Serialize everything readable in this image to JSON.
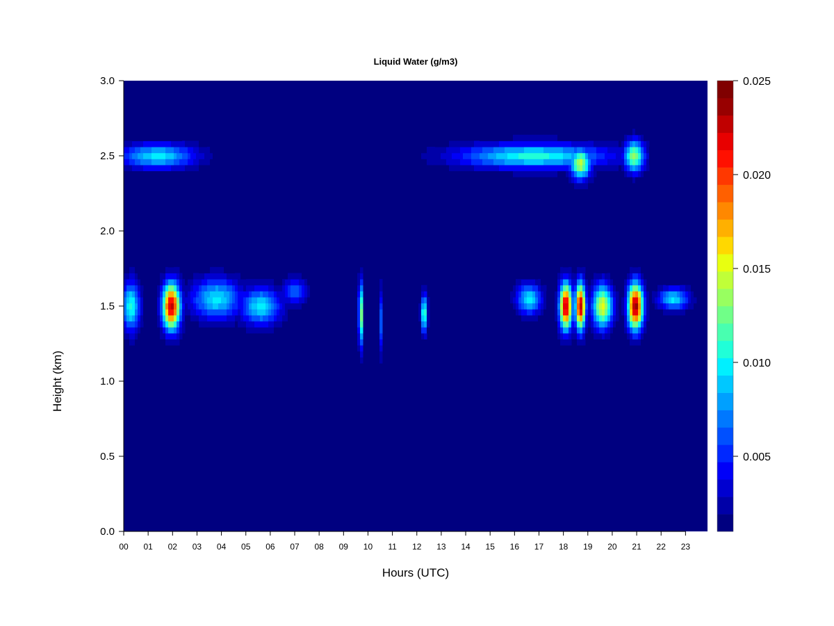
{
  "chart_data": {
    "type": "heatmap",
    "title": "Liquid Water (g/m3)",
    "xlabel": "Hours (UTC)",
    "ylabel": "Height (km)",
    "xlim": [
      0,
      23.9
    ],
    "ylim": [
      0,
      3.0
    ],
    "x_ticks": [
      "00",
      "01",
      "02",
      "03",
      "04",
      "05",
      "06",
      "07",
      "08",
      "09",
      "10",
      "11",
      "12",
      "13",
      "14",
      "15",
      "16",
      "17",
      "18",
      "19",
      "20",
      "21",
      "22",
      "23"
    ],
    "y_ticks": [
      "0.0",
      "0.5",
      "1.0",
      "1.5",
      "2.0",
      "2.5",
      "3.0"
    ],
    "colorbar": {
      "range": [
        0.001,
        0.025
      ],
      "ticks": [
        "0.005",
        "0.010",
        "0.015",
        "0.020",
        "0.025"
      ],
      "colors": [
        "#000080",
        "#0000a8",
        "#0000d0",
        "#0000f8",
        "#0028ff",
        "#0050ff",
        "#0078ff",
        "#00a0ff",
        "#00c8ff",
        "#00f0ff",
        "#20ffd8",
        "#48ffb0",
        "#70ff88",
        "#98ff60",
        "#c0ff38",
        "#e8ff10",
        "#ffd800",
        "#ffb000",
        "#ff8800",
        "#ff6000",
        "#ff3800",
        "#ff1000",
        "#e80000",
        "#c00000",
        "#980000",
        "#800000"
      ]
    },
    "features": [
      {
        "hour": 0.3,
        "height": 1.5,
        "intensity": 0.011,
        "sx": 0.35,
        "sy": 0.16
      },
      {
        "hour": 1.95,
        "height": 1.5,
        "intensity": 0.024,
        "sx": 0.35,
        "sy": 0.15
      },
      {
        "hour": 3.8,
        "height": 1.55,
        "intensity": 0.01,
        "sx": 1.0,
        "sy": 0.13
      },
      {
        "hour": 5.6,
        "height": 1.5,
        "intensity": 0.01,
        "sx": 0.8,
        "sy": 0.12
      },
      {
        "hour": 7.0,
        "height": 1.6,
        "intensity": 0.007,
        "sx": 0.5,
        "sy": 0.08
      },
      {
        "hour": 1.4,
        "height": 2.5,
        "intensity": 0.01,
        "sx": 1.5,
        "sy": 0.08
      },
      {
        "hour": 9.7,
        "height": 1.45,
        "intensity": 0.015,
        "sx": 0.08,
        "sy": 0.2
      },
      {
        "hour": 10.5,
        "height": 1.4,
        "intensity": 0.008,
        "sx": 0.06,
        "sy": 0.2
      },
      {
        "hour": 12.3,
        "height": 1.45,
        "intensity": 0.013,
        "sx": 0.12,
        "sy": 0.12
      },
      {
        "hour": 16.8,
        "height": 2.5,
        "intensity": 0.011,
        "sx": 3.0,
        "sy": 0.08
      },
      {
        "hour": 18.7,
        "height": 2.45,
        "intensity": 0.015,
        "sx": 0.4,
        "sy": 0.1
      },
      {
        "hour": 20.9,
        "height": 2.5,
        "intensity": 0.014,
        "sx": 0.4,
        "sy": 0.1
      },
      {
        "hour": 16.6,
        "height": 1.55,
        "intensity": 0.01,
        "sx": 0.5,
        "sy": 0.1
      },
      {
        "hour": 18.1,
        "height": 1.5,
        "intensity": 0.024,
        "sx": 0.25,
        "sy": 0.15
      },
      {
        "hour": 18.7,
        "height": 1.5,
        "intensity": 0.024,
        "sx": 0.2,
        "sy": 0.15
      },
      {
        "hour": 19.6,
        "height": 1.5,
        "intensity": 0.016,
        "sx": 0.4,
        "sy": 0.14
      },
      {
        "hour": 20.95,
        "height": 1.5,
        "intensity": 0.025,
        "sx": 0.3,
        "sy": 0.15
      },
      {
        "hour": 22.5,
        "height": 1.55,
        "intensity": 0.01,
        "sx": 0.6,
        "sy": 0.07
      }
    ]
  }
}
